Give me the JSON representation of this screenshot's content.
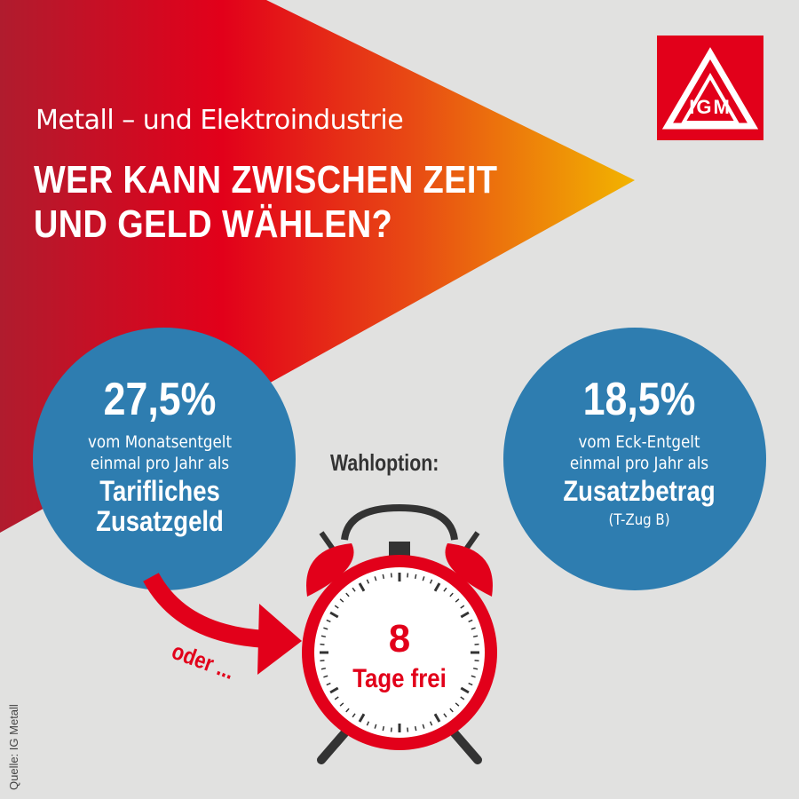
{
  "header": {
    "subtitle": "Metall – und Elektroindustrie",
    "headline_line1": "WER KANN ZWISCHEN ZEIT",
    "headline_line2": "UND GELD WÄHLEN?"
  },
  "logo": {
    "name": "IG Metall logo",
    "letters": "IGM"
  },
  "left_option": {
    "percent": "27,5%",
    "line1": "vom Monatsentgelt",
    "line2": "einmal pro Jahr als",
    "title_line1": "Tarifliches",
    "title_line2": "Zusatzgeld"
  },
  "right_option": {
    "percent": "18,5%",
    "line1": "vom Eck-Entgelt",
    "line2": "einmal pro Jahr als",
    "title": "Zusatzbetrag",
    "note": "(T-Zug B)"
  },
  "choice": {
    "label": "Wahloption:",
    "connector": "oder ...",
    "days_number": "8",
    "days_label": "Tage frei"
  },
  "source": "Quelle: IG Metall",
  "colors": {
    "background": "#e1e1e0",
    "red": "#e2001a",
    "dark_red": "#b01c2e",
    "yellow": "#f2b400",
    "circle_blue": "#2e7db0",
    "text_dark": "#333333",
    "white": "#ffffff"
  }
}
